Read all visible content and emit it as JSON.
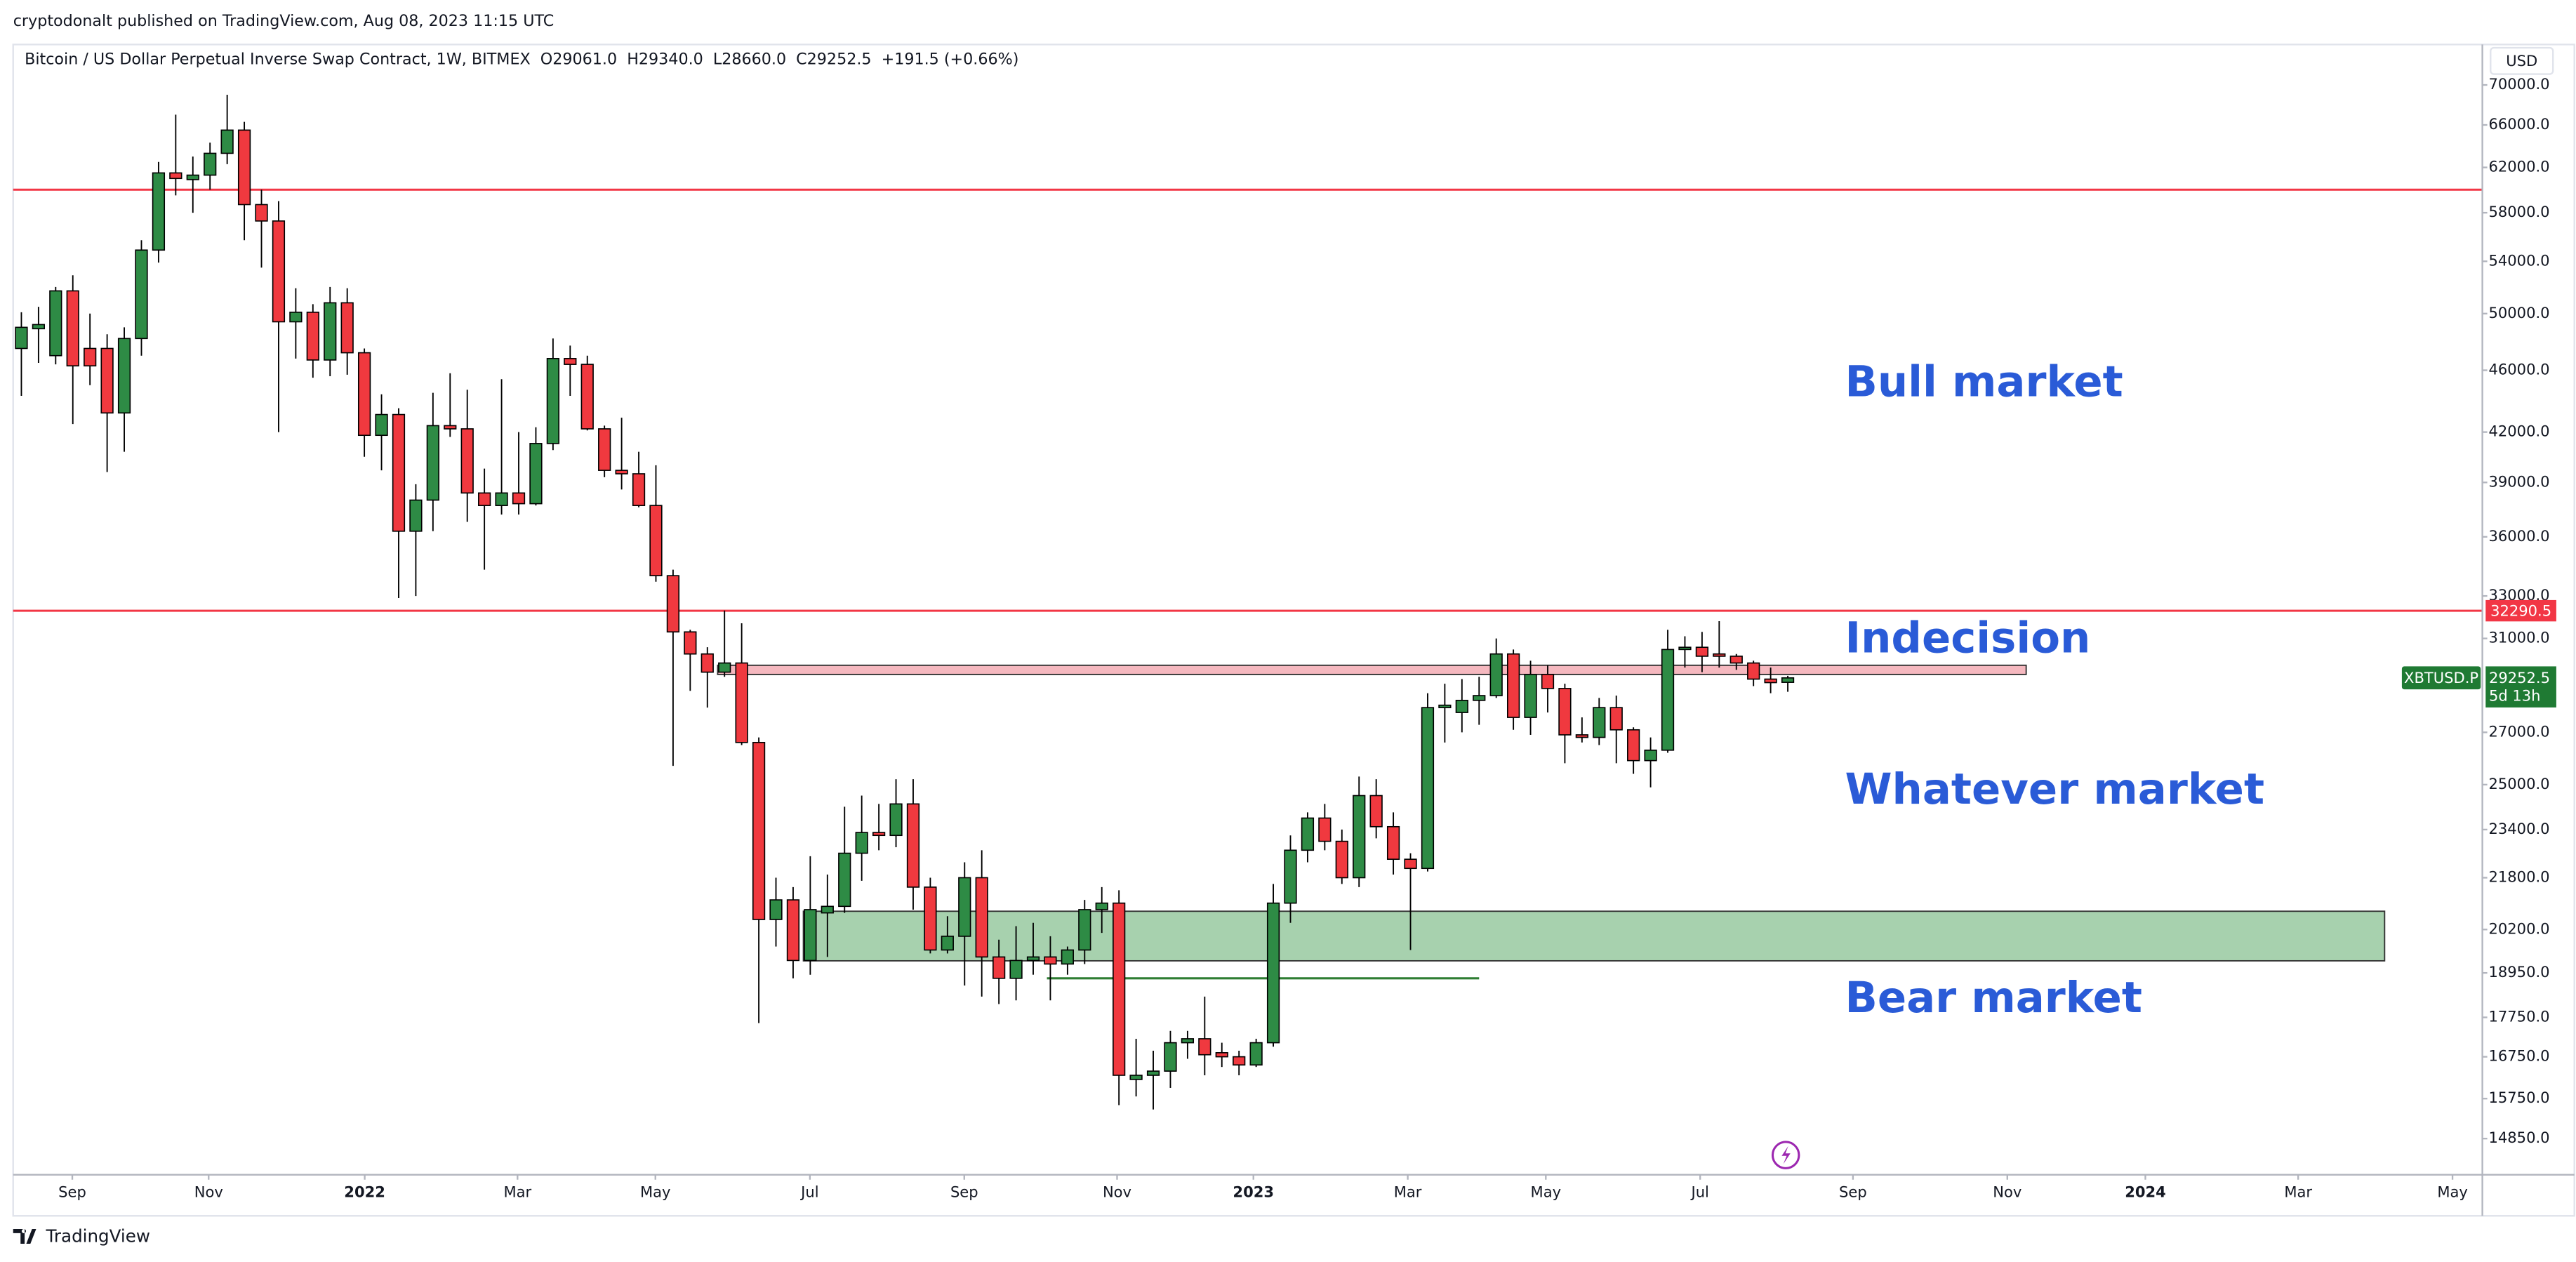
{
  "page": {
    "published": "cryptodonalt published on TradingView.com, Aug 08, 2023 11:15 UTC",
    "brand": "TradingView"
  },
  "chart_data": {
    "type": "candlestick",
    "title": "Bitcoin / US Dollar Perpetual Inverse Swap Contract, 1W, BITMEX",
    "legend_values": [
      "O29061.0",
      "H29340.0",
      "L28660.0",
      "C29252.5",
      "+191.5 (+0.66%)"
    ],
    "currency": "USD",
    "log_scale": true,
    "up_color": "#2e8b45",
    "down_color": "#f0393f",
    "open": [
      47500,
      48900,
      47000,
      51700,
      47500,
      47500,
      43200,
      48200,
      54900,
      61500,
      60900,
      61300,
      63300,
      65500,
      58700,
      57300,
      49400,
      50100,
      46700,
      50800,
      47200,
      41800,
      43100,
      36300,
      38000,
      42400,
      42200,
      38400,
      37700,
      38400,
      37800,
      41300,
      46800,
      46400,
      42200,
      39700,
      39500,
      37700,
      34000,
      31300,
      30300,
      29500,
      29900,
      26600,
      20500,
      21100,
      19300,
      20700,
      20900,
      22600,
      23300,
      23200,
      24300,
      21500,
      19600,
      20000,
      21800,
      19400,
      18800,
      19300,
      19400,
      19200,
      19600,
      20800,
      21000,
      16200,
      16300,
      16400,
      17100,
      17200,
      16850,
      16750,
      16550,
      17100,
      21000,
      22700,
      23800,
      23000,
      21800,
      24600,
      23500,
      22400,
      22100,
      28000,
      27800,
      28300,
      28500,
      30300,
      27600,
      29400,
      28800,
      26900,
      26800,
      28000,
      27100,
      25900,
      26300,
      30500,
      30600,
      30300,
      30200,
      29900,
      29200,
      29061
    ],
    "high": [
      50100,
      50500,
      52000,
      52900,
      50000,
      48500,
      49000,
      55700,
      62500,
      67000,
      63000,
      64300,
      69000,
      66300,
      60000,
      59000,
      51900,
      50700,
      52000,
      51900,
      47500,
      44400,
      43500,
      38900,
      44500,
      45800,
      44700,
      39800,
      45400,
      42000,
      42300,
      48200,
      47700,
      47000,
      42400,
      42900,
      40800,
      40000,
      34300,
      31400,
      30600,
      32300,
      31700,
      26800,
      21800,
      21500,
      22500,
      21900,
      24200,
      24600,
      24300,
      25200,
      25200,
      21800,
      20600,
      22300,
      22700,
      19900,
      20300,
      20400,
      20000,
      19700,
      21100,
      21500,
      21400,
      17200,
      16900,
      17400,
      17400,
      18300,
      17100,
      16900,
      17200,
      21600,
      23200,
      24000,
      24300,
      23400,
      25300,
      25200,
      24000,
      22600,
      28600,
      29000,
      29200,
      29300,
      31000,
      30500,
      30000,
      29800,
      29000,
      27600,
      28400,
      28500,
      27200,
      26800,
      31400,
      31100,
      31300,
      31800,
      30300,
      30000,
      29700,
      29340
    ],
    "low": [
      44300,
      46500,
      46400,
      42500,
      45000,
      39600,
      40800,
      47000,
      53900,
      59500,
      58000,
      60000,
      62300,
      55700,
      53500,
      42000,
      46800,
      45500,
      45600,
      45700,
      40500,
      39700,
      32900,
      33000,
      36300,
      41700,
      36800,
      34300,
      37200,
      37200,
      37700,
      40900,
      44300,
      42100,
      39300,
      38600,
      37600,
      33700,
      25700,
      28700,
      28000,
      29300,
      26500,
      17600,
      19700,
      18800,
      18900,
      19400,
      20700,
      21700,
      22700,
      22800,
      20800,
      19500,
      19500,
      18600,
      18300,
      18100,
      18200,
      18900,
      18200,
      18900,
      19200,
      20100,
      15600,
      15800,
      15500,
      16000,
      16700,
      16300,
      16500,
      16300,
      16500,
      17000,
      20400,
      22300,
      22700,
      21600,
      21500,
      23100,
      21900,
      19600,
      22000,
      26600,
      27000,
      27300,
      28400,
      27100,
      26900,
      27800,
      25800,
      26600,
      26500,
      25800,
      25400,
      24900,
      26200,
      29700,
      29500,
      29700,
      29600,
      28900,
      28600,
      28660
    ],
    "close": [
      49000,
      49200,
      51700,
      46300,
      46300,
      43200,
      48200,
      54900,
      61500,
      61000,
      61300,
      63300,
      65500,
      58700,
      57300,
      49400,
      50100,
      46700,
      50800,
      47200,
      41800,
      43100,
      36300,
      38000,
      42400,
      42200,
      38400,
      37700,
      38400,
      37800,
      41300,
      46800,
      46400,
      42200,
      39700,
      39500,
      37700,
      34000,
      31300,
      30300,
      29500,
      29900,
      26600,
      20500,
      21100,
      19300,
      20800,
      20900,
      22600,
      23300,
      23200,
      24300,
      21500,
      19600,
      20000,
      21800,
      19400,
      18800,
      19300,
      19400,
      19200,
      19600,
      20800,
      21000,
      16300,
      16300,
      16400,
      17100,
      17200,
      16800,
      16750,
      16550,
      17100,
      21000,
      22700,
      23800,
      23000,
      21800,
      24600,
      23500,
      22400,
      22100,
      28000,
      28100,
      28300,
      28500,
      30300,
      27600,
      29400,
      28800,
      26900,
      26800,
      28000,
      27100,
      25900,
      26300,
      30500,
      30600,
      30200,
      30200,
      29900,
      29200,
      29050,
      29252.5
    ],
    "xlim": [
      -0.48,
      143.5
    ],
    "xticks": [
      {
        "value": 2.97,
        "label": "Sep"
      },
      {
        "value": 10.92,
        "label": "Nov"
      },
      {
        "value": 20.02,
        "label": "2022"
      },
      {
        "value": 28.93,
        "label": "Mar"
      },
      {
        "value": 36.97,
        "label": "May"
      },
      {
        "value": 45.98,
        "label": "Jul"
      },
      {
        "value": 54.98,
        "label": "Sep"
      },
      {
        "value": 63.89,
        "label": "Nov"
      },
      {
        "value": 71.84,
        "label": "2023"
      },
      {
        "value": 80.84,
        "label": "Mar"
      },
      {
        "value": 88.89,
        "label": "May"
      },
      {
        "value": 97.89,
        "label": "Jul"
      },
      {
        "value": 106.8,
        "label": "Sep"
      },
      {
        "value": 115.8,
        "label": "Nov"
      },
      {
        "value": 123.85,
        "label": "2024"
      },
      {
        "value": 132.76,
        "label": "Mar"
      },
      {
        "value": 141.76,
        "label": "May"
      }
    ],
    "ylim": [
      14080,
      71300
    ],
    "yticks": [
      {
        "value": 14850,
        "label": "14850.0"
      },
      {
        "value": 15750,
        "label": "15750.0"
      },
      {
        "value": 16750,
        "label": "16750.0"
      },
      {
        "value": 17750,
        "label": "17750.0"
      },
      {
        "value": 18950,
        "label": "18950.0"
      },
      {
        "value": 20200,
        "label": "20200.0"
      },
      {
        "value": 21800,
        "label": "21800.0"
      },
      {
        "value": 23400,
        "label": "23400.0"
      },
      {
        "value": 25000,
        "label": "25000.0"
      },
      {
        "value": 27000,
        "label": "27000.0"
      },
      {
        "value": 31000,
        "label": "31000.0"
      },
      {
        "value": 33000,
        "label": "33000.0"
      },
      {
        "value": 36000,
        "label": "36000.0"
      },
      {
        "value": 39000,
        "label": "39000.0"
      },
      {
        "value": 42000,
        "label": "42000.0"
      },
      {
        "value": 46000,
        "label": "46000.0"
      },
      {
        "value": 50000,
        "label": "50000.0"
      },
      {
        "value": 54000,
        "label": "54000.0"
      },
      {
        "value": 58000,
        "label": "58000.0"
      },
      {
        "value": 62000,
        "label": "62000.0"
      },
      {
        "value": 66000,
        "label": "66000.0"
      },
      {
        "value": 70000,
        "label": "70000.0"
      }
    ],
    "hlines": [
      {
        "value": 60000,
        "color": "#f23645"
      },
      {
        "value": 32290.5,
        "color": "#f23645",
        "show_label": true
      }
    ],
    "zones": [
      {
        "from": 29400,
        "to": 29800,
        "start": 40.6,
        "end": 116.9,
        "color": "#f5b8bf"
      },
      {
        "from": 19290,
        "to": 20750,
        "start": 45.6,
        "end": 137.8,
        "color": "#a7d1ae"
      }
    ],
    "segments": [
      {
        "value": 18800,
        "start": 59.8,
        "end": 85.0,
        "color": "#2e7d32"
      }
    ],
    "last_price": {
      "value": 29252.5,
      "symbol": "XBTUSD.P",
      "countdown": "5d 13h",
      "color": "#1f7a33"
    },
    "annotations": [
      "Bull market",
      "Indecision",
      "Whatever market",
      "Bear market"
    ]
  }
}
